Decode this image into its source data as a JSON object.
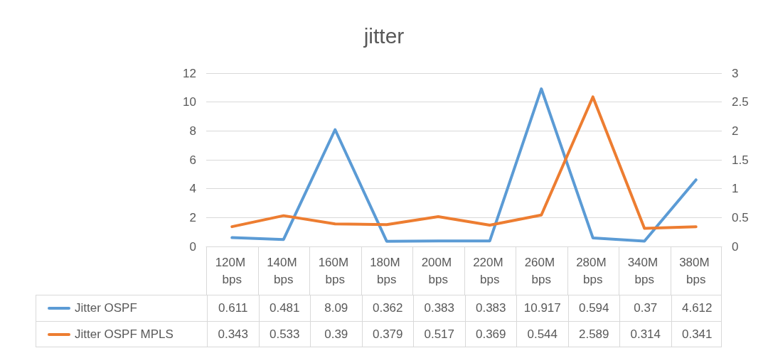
{
  "chart_data": {
    "type": "line",
    "title": "jitter",
    "categories": [
      "120M bps",
      "140M bps",
      "160M bps",
      "180M bps",
      "200M bps",
      "220M bps",
      "260M bps",
      "280M bps",
      "340M bps",
      "380M bps"
    ],
    "series": [
      {
        "name": "Jitter OSPF",
        "color": "#5b9bd5",
        "values": [
          0.611,
          0.481,
          8.09,
          0.362,
          0.383,
          0.383,
          10.917,
          0.594,
          0.37,
          4.612
        ]
      },
      {
        "name": "Jitter OSPF MPLS",
        "color": "#ed7d31",
        "axis": "y2",
        "values": [
          0.343,
          0.533,
          0.39,
          0.379,
          0.517,
          0.369,
          0.544,
          2.589,
          0.314,
          0.341
        ]
      }
    ],
    "ylim": [
      0,
      12
    ],
    "yticks": [
      0,
      2,
      4,
      6,
      8,
      10,
      12
    ],
    "y2lim": [
      0,
      3
    ],
    "y2ticks": [
      0,
      0.5,
      1,
      1.5,
      2,
      2.5,
      3
    ],
    "grid": "y",
    "legend": "bottom",
    "marker": "none",
    "data_labels": true
  }
}
